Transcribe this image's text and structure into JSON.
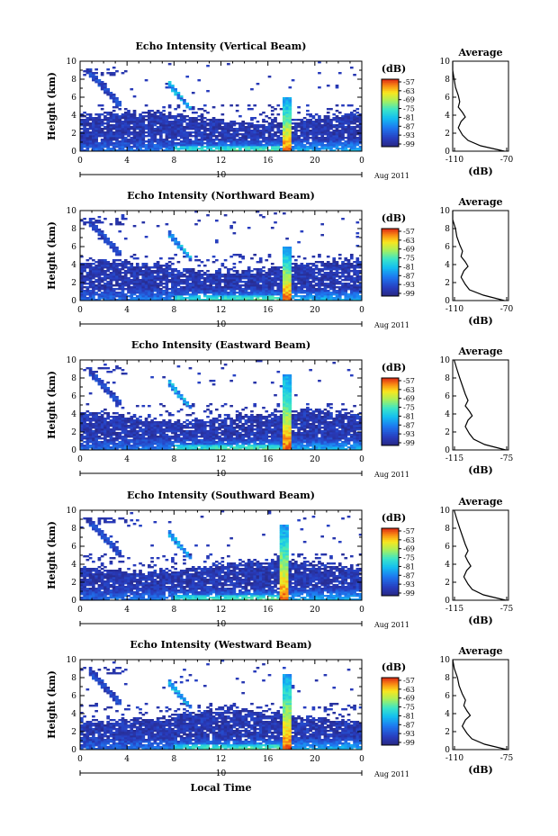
{
  "chart_data": [
    {
      "type": "heatmap",
      "title": "Echo Intensity (Vertical Beam)",
      "ylabel": "Height (km)",
      "ylim": [
        0,
        10
      ],
      "yticks": [
        "0",
        "2",
        "4",
        "6",
        "8",
        "10"
      ],
      "xlim": [
        0,
        24
      ],
      "xticks": [
        "0",
        "4",
        "8",
        "12",
        "16",
        "20",
        "0"
      ],
      "date_marker": "10",
      "date_label": "Aug 2011",
      "colorbar": {
        "unit": "(dB)",
        "ticks": [
          "-57",
          "-63",
          "-69",
          "-75",
          "-81",
          "-87",
          "-93",
          "-99"
        ],
        "range": [
          -99,
          -57
        ]
      },
      "average": {
        "title": "Average",
        "xlabel": "(dB)",
        "xticks": [
          "-110",
          "-70"
        ],
        "xlim": [
          -110,
          -70
        ],
        "ylim": [
          0,
          10
        ],
        "profile": [
          [
            -73,
            0
          ],
          [
            -90,
            0.6
          ],
          [
            -99,
            1.2
          ],
          [
            -103,
            1.8
          ],
          [
            -106,
            2.6
          ],
          [
            -104,
            3.3
          ],
          [
            -101,
            3.8
          ],
          [
            -103,
            4.3
          ],
          [
            -106,
            4.9
          ],
          [
            -105,
            5.5
          ],
          [
            -106,
            6.2
          ],
          [
            -108,
            7.1
          ],
          [
            -109,
            8.0
          ],
          [
            -110,
            9.0
          ],
          [
            -110,
            10
          ]
        ]
      }
    },
    {
      "type": "heatmap",
      "title": "Echo Intensity (Northward Beam)",
      "ylabel": "Height (km)",
      "ylim": [
        0,
        10
      ],
      "yticks": [
        "0",
        "2",
        "4",
        "6",
        "8",
        "10"
      ],
      "xlim": [
        0,
        24
      ],
      "xticks": [
        "0",
        "4",
        "8",
        "12",
        "16",
        "20",
        "0"
      ],
      "date_marker": "10",
      "date_label": "Aug 2011",
      "colorbar": {
        "unit": "(dB)",
        "ticks": [
          "-57",
          "-63",
          "-69",
          "-75",
          "-81",
          "-87",
          "-93",
          "-99"
        ],
        "range": [
          -99,
          -57
        ]
      },
      "average": {
        "title": "Average",
        "xlabel": "(dB)",
        "xticks": [
          "-110",
          "-70"
        ],
        "xlim": [
          -110,
          -70
        ],
        "ylim": [
          0,
          10
        ],
        "profile": [
          [
            -73,
            0
          ],
          [
            -88,
            0.6
          ],
          [
            -98,
            1.2
          ],
          [
            -101,
            1.8
          ],
          [
            -104,
            2.6
          ],
          [
            -102,
            3.3
          ],
          [
            -99,
            3.8
          ],
          [
            -101,
            4.3
          ],
          [
            -104,
            4.9
          ],
          [
            -103,
            5.5
          ],
          [
            -105,
            6.2
          ],
          [
            -107,
            7.1
          ],
          [
            -108,
            8.0
          ],
          [
            -110,
            9.0
          ],
          [
            -110,
            10
          ]
        ]
      }
    },
    {
      "type": "heatmap",
      "title": "Echo Intensity (Eastward Beam)",
      "ylabel": "Height (km)",
      "ylim": [
        0,
        10
      ],
      "yticks": [
        "0",
        "2",
        "4",
        "6",
        "8",
        "10"
      ],
      "xlim": [
        0,
        24
      ],
      "xticks": [
        "0",
        "4",
        "8",
        "12",
        "16",
        "20",
        "0"
      ],
      "date_marker": "10",
      "date_label": "Aug 2011",
      "colorbar": {
        "unit": "(dB)",
        "ticks": [
          "-57",
          "-63",
          "-69",
          "-75",
          "-81",
          "-87",
          "-93",
          "-99"
        ],
        "range": [
          -99,
          -57
        ]
      },
      "average": {
        "title": "Average",
        "xlabel": "(dB)",
        "xticks": [
          "-115",
          "-75"
        ],
        "xlim": [
          -115,
          -75
        ],
        "ylim": [
          0,
          10
        ],
        "profile": [
          [
            -77,
            0
          ],
          [
            -92,
            0.6
          ],
          [
            -100,
            1.2
          ],
          [
            -103,
            1.8
          ],
          [
            -106,
            2.6
          ],
          [
            -104,
            3.3
          ],
          [
            -101,
            3.8
          ],
          [
            -103,
            4.3
          ],
          [
            -106,
            4.9
          ],
          [
            -104,
            5.5
          ],
          [
            -106,
            6.2
          ],
          [
            -108,
            7.1
          ],
          [
            -110,
            8.0
          ],
          [
            -112,
            9.0
          ],
          [
            -114,
            10
          ]
        ]
      }
    },
    {
      "type": "heatmap",
      "title": "Echo Intensity (Southward Beam)",
      "ylabel": "Height (km)",
      "ylim": [
        0,
        10
      ],
      "yticks": [
        "0",
        "2",
        "4",
        "6",
        "8",
        "10"
      ],
      "xlim": [
        0,
        24
      ],
      "xticks": [
        "0",
        "4",
        "8",
        "12",
        "16",
        "20",
        "0"
      ],
      "date_marker": "10",
      "date_label": "Aug 2011",
      "colorbar": {
        "unit": "(dB)",
        "ticks": [
          "-57",
          "-63",
          "-69",
          "-75",
          "-81",
          "-87",
          "-93",
          "-99"
        ],
        "range": [
          -99,
          -57
        ]
      },
      "average": {
        "title": "Average",
        "xlabel": "(dB)",
        "xticks": [
          "-115",
          "-75"
        ],
        "xlim": [
          -115,
          -75
        ],
        "ylim": [
          0,
          10
        ],
        "profile": [
          [
            -77,
            0
          ],
          [
            -93,
            0.6
          ],
          [
            -101,
            1.2
          ],
          [
            -104,
            1.8
          ],
          [
            -107,
            2.6
          ],
          [
            -105,
            3.3
          ],
          [
            -102,
            3.8
          ],
          [
            -104,
            4.3
          ],
          [
            -106,
            4.9
          ],
          [
            -104,
            5.5
          ],
          [
            -106,
            6.2
          ],
          [
            -108,
            7.1
          ],
          [
            -110,
            8.0
          ],
          [
            -112,
            9.0
          ],
          [
            -114,
            10
          ]
        ]
      }
    },
    {
      "type": "heatmap",
      "title": "Echo Intensity (Westward Beam)",
      "ylabel": "Height (km)",
      "ylim": [
        0,
        10
      ],
      "yticks": [
        "0",
        "2",
        "4",
        "6",
        "8",
        "10"
      ],
      "xlim": [
        0,
        24
      ],
      "xticks": [
        "0",
        "4",
        "8",
        "12",
        "16",
        "20",
        "0"
      ],
      "date_marker": "10",
      "date_label": "Aug 2011",
      "xlabel": "Local Time",
      "colorbar": {
        "unit": "(dB)",
        "ticks": [
          "-57",
          "-63",
          "-69",
          "-75",
          "-81",
          "-87",
          "-93",
          "-99"
        ],
        "range": [
          -99,
          -57
        ]
      },
      "average": {
        "title": "Average",
        "xlabel": "(dB)",
        "xticks": [
          "-110",
          "-75"
        ],
        "xlim": [
          -110,
          -75
        ],
        "ylim": [
          0,
          10
        ],
        "profile": [
          [
            -76,
            0
          ],
          [
            -90,
            0.6
          ],
          [
            -98,
            1.2
          ],
          [
            -101,
            1.8
          ],
          [
            -104,
            2.6
          ],
          [
            -102,
            3.3
          ],
          [
            -99,
            3.8
          ],
          [
            -101,
            4.3
          ],
          [
            -103,
            4.9
          ],
          [
            -102,
            5.5
          ],
          [
            -104,
            6.2
          ],
          [
            -106,
            7.1
          ],
          [
            -107,
            8.0
          ],
          [
            -109,
            9.0
          ],
          [
            -110,
            10
          ]
        ]
      }
    }
  ]
}
